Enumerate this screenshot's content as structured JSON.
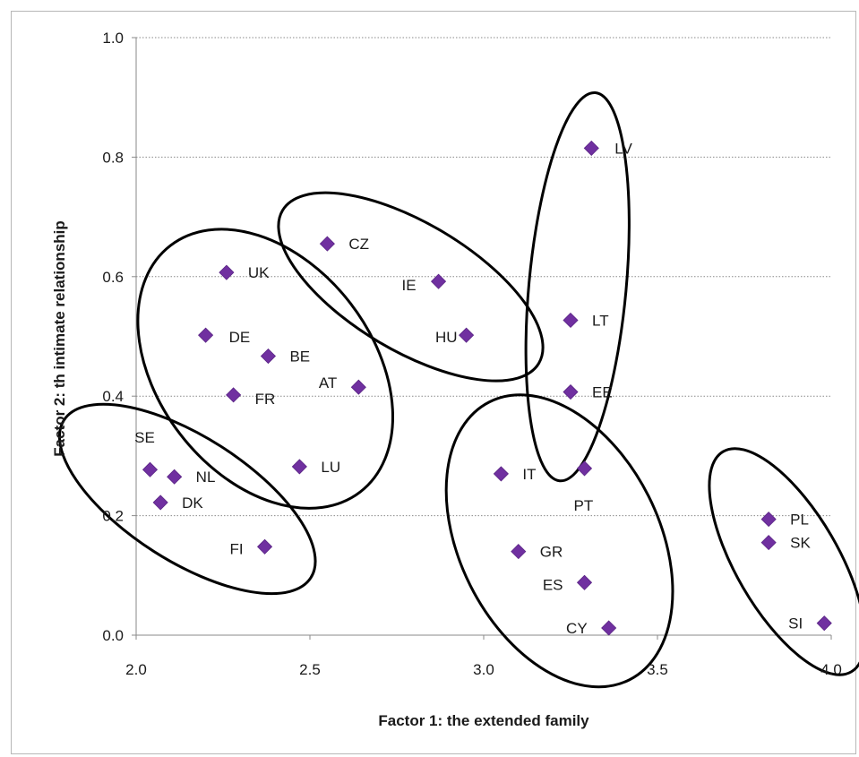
{
  "chart_data": {
    "type": "scatter",
    "title": "",
    "xlabel": "Factor 1: the extended family",
    "ylabel": "Factor 2: th intimate relationship",
    "xlim": [
      2.0,
      4.0
    ],
    "ylim": [
      0.0,
      1.0
    ],
    "x_ticks": [
      "2.0",
      "2.5",
      "3.0",
      "3.5",
      "4.0"
    ],
    "y_ticks": [
      "0.0",
      "0.2",
      "0.4",
      "0.6",
      "0.8",
      "1.0"
    ],
    "grid": "horizontal dotted",
    "legend": "none",
    "marker": "diamond",
    "marker_color": "#7030a0",
    "points": [
      {
        "label": "LV",
        "x": 3.31,
        "y": 0.815
      },
      {
        "label": "CZ",
        "x": 2.55,
        "y": 0.655
      },
      {
        "label": "UK",
        "x": 2.26,
        "y": 0.607
      },
      {
        "label": "IE",
        "x": 2.87,
        "y": 0.592
      },
      {
        "label": "LT",
        "x": 3.25,
        "y": 0.527
      },
      {
        "label": "DE",
        "x": 2.2,
        "y": 0.502
      },
      {
        "label": "HU",
        "x": 2.95,
        "y": 0.502
      },
      {
        "label": "BE",
        "x": 2.38,
        "y": 0.467
      },
      {
        "label": "AT",
        "x": 2.64,
        "y": 0.415
      },
      {
        "label": "EE",
        "x": 3.25,
        "y": 0.407
      },
      {
        "label": "FR",
        "x": 2.28,
        "y": 0.402
      },
      {
        "label": "LU",
        "x": 2.47,
        "y": 0.282
      },
      {
        "label": "PT",
        "x": 3.29,
        "y": 0.279
      },
      {
        "label": "SE",
        "x": 2.04,
        "y": 0.277
      },
      {
        "label": "IT",
        "x": 3.05,
        "y": 0.27
      },
      {
        "label": "NL",
        "x": 2.11,
        "y": 0.265
      },
      {
        "label": "DK",
        "x": 2.07,
        "y": 0.222
      },
      {
        "label": "PL",
        "x": 3.82,
        "y": 0.194
      },
      {
        "label": "SK",
        "x": 3.82,
        "y": 0.155
      },
      {
        "label": "FI",
        "x": 2.37,
        "y": 0.148
      },
      {
        "label": "GR",
        "x": 3.1,
        "y": 0.14
      },
      {
        "label": "ES",
        "x": 3.29,
        "y": 0.088
      },
      {
        "label": "SI",
        "x": 3.98,
        "y": 0.02
      },
      {
        "label": "CY",
        "x": 3.36,
        "y": 0.012
      }
    ],
    "clusters": [
      [
        "SE",
        "NL",
        "DK",
        "FI"
      ],
      [
        "UK",
        "DE",
        "BE",
        "FR",
        "AT",
        "LU"
      ],
      [
        "CZ",
        "IE",
        "HU"
      ],
      [
        "LV",
        "LT",
        "EE"
      ],
      [
        "IT",
        "PT",
        "GR",
        "ES",
        "CY"
      ],
      [
        "PL",
        "SK",
        "SI"
      ]
    ]
  }
}
